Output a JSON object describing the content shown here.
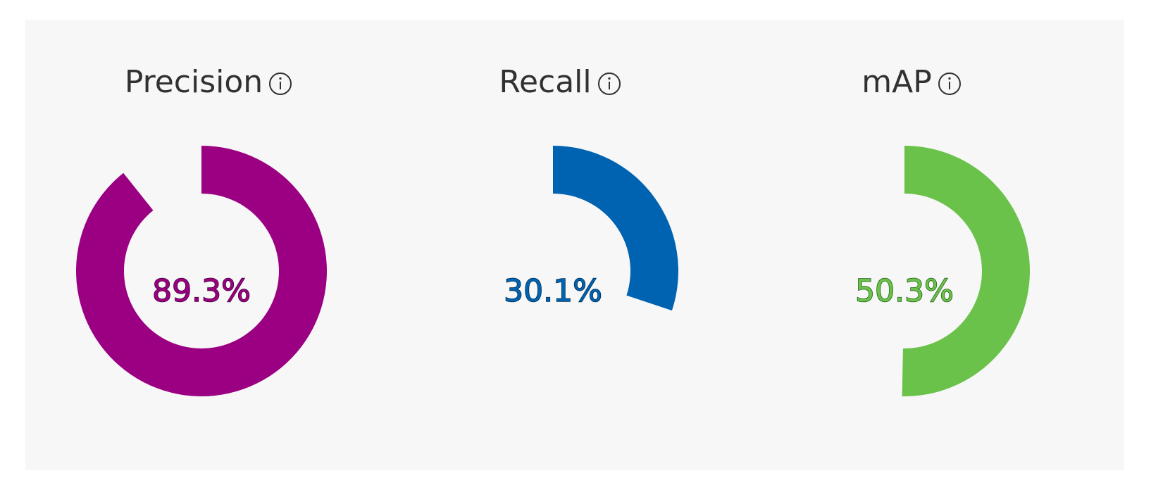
{
  "metrics": [
    {
      "key": "precision",
      "title": "Precision",
      "value": 0.893,
      "value_label": "89.3%",
      "color": "#9b0083",
      "text_color": "#9b0083",
      "stroke_color": "#3b0032",
      "icon": "info-icon"
    },
    {
      "key": "recall",
      "title": "Recall",
      "value": 0.301,
      "value_label": "30.1%",
      "color": "#0063b1",
      "text_color": "#0063b1",
      "stroke_color": "#002a4d",
      "icon": "info-icon"
    },
    {
      "key": "map",
      "title": "mAP",
      "value": 0.503,
      "value_label": "50.3%",
      "color": "#6bc24a",
      "text_color": "#6bc24a",
      "stroke_color": "#1e5a12",
      "icon": "info-icon"
    }
  ],
  "colors": {
    "panel_background": "#f7f7f7",
    "title_text": "#323130"
  }
}
